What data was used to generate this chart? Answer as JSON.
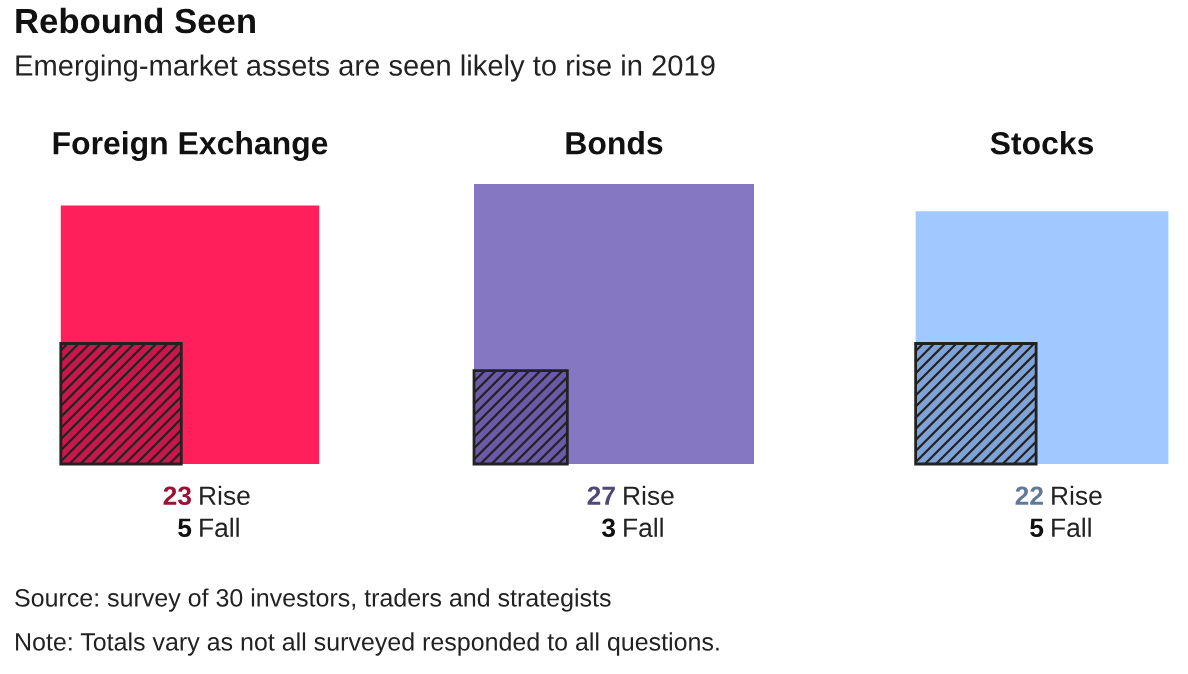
{
  "chart_data": {
    "type": "other",
    "title": "Rebound Seen",
    "subtitle": "Emerging-market assets are seen likely to rise in 2019",
    "categories": [
      "Foreign Exchange",
      "Bonds",
      "Stocks"
    ],
    "series": [
      {
        "name": "Rise",
        "values": [
          23,
          27,
          22
        ],
        "colors": [
          "#ff1f5b",
          "#8577c2",
          "#a2c9ff"
        ]
      },
      {
        "name": "Fall",
        "values": [
          5,
          3,
          5
        ],
        "colors": [
          "#c8174a",
          "#6a5aa8",
          "#7fa3d6"
        ]
      }
    ],
    "data_labels": true,
    "annotations": [
      "Source: survey of 30 investors, traders and strategists",
      "Note: Totals vary as not all surveyed responded to all questions."
    ]
  }
}
